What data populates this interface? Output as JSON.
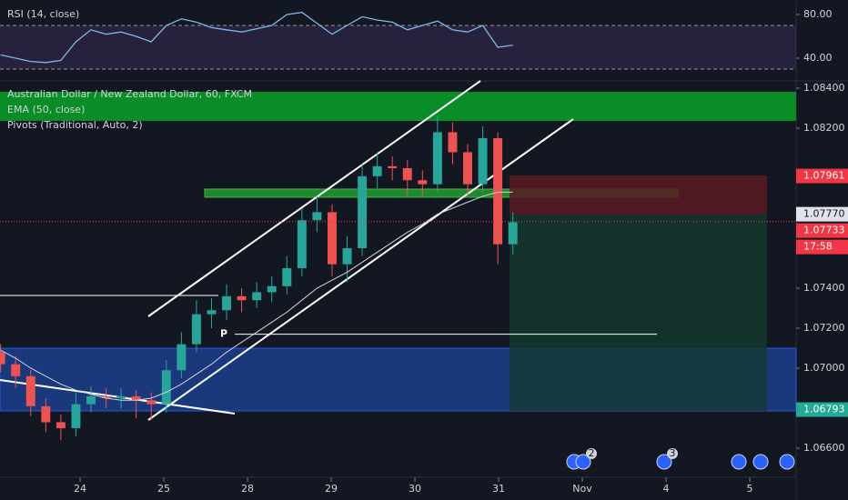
{
  "chart_data": {
    "type": "candlestick",
    "title": "Australian Dollar / New Zealand Dollar, 60, FXCM",
    "indicators": [
      "EMA (50, close)",
      "Pivots (Traditional, Auto, 2)"
    ],
    "x": [
      -0.95,
      -0.77,
      -0.59,
      -0.41,
      -0.23,
      -0.05,
      0.13,
      0.31,
      0.49,
      0.67,
      0.85,
      1.03,
      1.21,
      1.39,
      1.57,
      1.75,
      1.93,
      2.11,
      2.29,
      2.47,
      2.65,
      2.83,
      3.01,
      3.19,
      3.37,
      3.55,
      3.73,
      3.91,
      4.09,
      4.27,
      4.45,
      4.63,
      4.81,
      4.99,
      5.17
    ],
    "open": [
      1.0708,
      1.0702,
      1.0696,
      1.0681,
      1.0673,
      1.067,
      1.0682,
      1.0686,
      1.0685,
      1.0686,
      1.0684,
      1.0682,
      1.0699,
      1.0712,
      1.0727,
      1.0729,
      1.0736,
      1.0734,
      1.0738,
      1.0741,
      1.075,
      1.0774,
      1.0778,
      1.0752,
      1.076,
      1.0796,
      1.0801,
      1.08,
      1.0794,
      1.0792,
      1.0818,
      1.0808,
      1.0792,
      1.0815,
      1.0762
    ],
    "high": [
      1.0712,
      1.0706,
      1.0699,
      1.0685,
      1.0677,
      1.0688,
      1.0691,
      1.069,
      1.069,
      1.0689,
      1.0688,
      1.0704,
      1.0718,
      1.0734,
      1.0735,
      1.0742,
      1.074,
      1.0743,
      1.0746,
      1.0756,
      1.078,
      1.0786,
      1.0782,
      1.0766,
      1.0802,
      1.0808,
      1.0806,
      1.0804,
      1.0799,
      1.0826,
      1.0823,
      1.0812,
      1.0821,
      1.0818,
      1.0778
    ],
    "low": [
      1.0698,
      1.069,
      1.0676,
      1.0668,
      1.0664,
      1.0666,
      1.0678,
      1.068,
      1.068,
      1.0675,
      1.0674,
      1.0678,
      1.0695,
      1.0708,
      1.072,
      1.0724,
      1.0728,
      1.073,
      1.0733,
      1.0737,
      1.0746,
      1.0768,
      1.0746,
      1.0743,
      1.0756,
      1.079,
      1.0794,
      1.0786,
      1.0786,
      1.0788,
      1.0802,
      1.0786,
      1.0788,
      1.0752,
      1.0757
    ],
    "close": [
      1.0702,
      1.0696,
      1.0681,
      1.0673,
      1.067,
      1.0682,
      1.0686,
      1.0685,
      1.0686,
      1.0684,
      1.0682,
      1.0699,
      1.0712,
      1.0727,
      1.0729,
      1.0736,
      1.0734,
      1.0738,
      1.0741,
      1.075,
      1.0774,
      1.0778,
      1.0752,
      1.076,
      1.0796,
      1.0801,
      1.08,
      1.0794,
      1.0792,
      1.0818,
      1.0808,
      1.0792,
      1.0815,
      1.0762,
      1.0773
    ],
    "up_color": "#26a69a",
    "down_color": "#ef5350",
    "ema": {
      "color": "#d1d4dc",
      "values": [
        1.0709,
        1.0705,
        1.07,
        1.0696,
        1.0692,
        1.0689,
        1.0687,
        1.0685,
        1.0684,
        1.0684,
        1.0685,
        1.0688,
        1.0692,
        1.0697,
        1.0702,
        1.0708,
        1.0713,
        1.0718,
        1.0723,
        1.0728,
        1.0734,
        1.074,
        1.0744,
        1.0748,
        1.0753,
        1.0758,
        1.0763,
        1.0768,
        1.0772,
        1.0777,
        1.078,
        1.0783,
        1.0786,
        1.0788,
        1.0788
      ]
    },
    "pivot": {
      "label": "P",
      "value": 1.0717
    },
    "xlim": [
      -0.957,
      8.554
    ],
    "ylim": [
      1.06432,
      1.08432
    ],
    "xticks": [
      {
        "value": 0,
        "label": "24"
      },
      {
        "value": 1,
        "label": "25"
      },
      {
        "value": 2,
        "label": "28"
      },
      {
        "value": 3,
        "label": "29"
      },
      {
        "value": 4,
        "label": "30"
      },
      {
        "value": 5,
        "label": "31"
      },
      {
        "value": 6,
        "label": "Nov"
      },
      {
        "value": 7,
        "label": "4"
      },
      {
        "value": 8,
        "label": "5"
      }
    ],
    "yticks": [
      {
        "value": 1.084,
        "label": "1.08400"
      },
      {
        "value": 1.082,
        "label": "1.08200"
      },
      {
        "value": 1.074,
        "label": "1.07400"
      },
      {
        "value": 1.072,
        "label": "1.07200"
      },
      {
        "value": 1.07,
        "label": "1.07000"
      },
      {
        "value": 1.066,
        "label": "1.06600"
      }
    ],
    "price_labels": [
      {
        "value": 1.07961,
        "label": "1.07961",
        "color": "#f23645"
      },
      {
        "value": 1.0777,
        "label": "1.07770",
        "color": "#e0e3eb"
      },
      {
        "value": 1.07733,
        "label": "1.07733",
        "color": "#f23645"
      },
      {
        "value": 1.06793,
        "label": "1.06793",
        "color": "#22ab94"
      }
    ],
    "countdown": "17:58",
    "rsi": {
      "title": "RSI (14, close)",
      "color": "#7fb8e8",
      "values": [
        43,
        40,
        37,
        36,
        38,
        55,
        66,
        62,
        64,
        60,
        55,
        70,
        76,
        73,
        68,
        66,
        64,
        67,
        70,
        80,
        82,
        72,
        62,
        70,
        78,
        75,
        73,
        66,
        70,
        74,
        66,
        64,
        70,
        50,
        52
      ],
      "ylim": [
        20,
        93.3
      ],
      "yticks": [
        {
          "value": 80,
          "label": "80.00"
        },
        {
          "value": 40,
          "label": "40.00"
        }
      ],
      "levels": [
        30,
        70
      ]
    },
    "event_badges": [
      "2",
      "3"
    ]
  }
}
